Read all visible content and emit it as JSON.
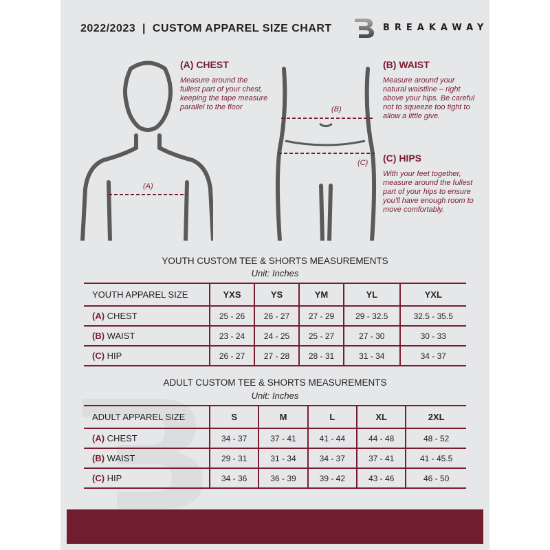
{
  "header": {
    "title": "2022/2023  |  CUSTOM APPAREL SIZE CHART",
    "brand": "BREAKAWAY",
    "logo_letter": "B"
  },
  "chest": {
    "heading": "(A) CHEST",
    "desc": "Measure around the fullest part of your chest, keeping the tape measure parallel to the floor",
    "marker": "(A)"
  },
  "waist": {
    "heading": "(B) WAIST",
    "desc": "Measure around your natural waistline – right above your hips. Be careful not to squeeze too tight to allow a little give.",
    "marker": "(B)"
  },
  "hips": {
    "heading": "(C) HIPS",
    "desc": "With your feet together, measure around the fullest part of your hips to ensure you'll have enough room to move comfortably.",
    "marker": "(C)"
  },
  "colors": {
    "accent": "#7a1c30",
    "background": "#e6e7e8"
  },
  "youth": {
    "title": "YOUTH CUSTOM TEE & SHORTS MEASUREMENTS",
    "unit": "Unit: Inches",
    "size_label": "YOUTH APPAREL SIZE",
    "sizes": [
      "YXS",
      "YS",
      "YM",
      "YL",
      "YXL"
    ],
    "rows": [
      {
        "letter": "(A)",
        "name": "CHEST",
        "values": [
          "25 - 26",
          "26 - 27",
          "27 - 29",
          "29 - 32.5",
          "32.5 - 35.5"
        ]
      },
      {
        "letter": "(B)",
        "name": "WAIST",
        "values": [
          "23 - 24",
          "24 - 25",
          "25 - 27",
          "27 - 30",
          "30 - 33"
        ]
      },
      {
        "letter": "(C)",
        "name": "HIP",
        "values": [
          "26 - 27",
          "27 - 28",
          "28 - 31",
          "31 - 34",
          "34 - 37"
        ]
      }
    ]
  },
  "adult": {
    "title": "ADULT CUSTOM TEE & SHORTS MEASUREMENTS",
    "unit": "Unit: Inches",
    "size_label": "ADULT APPAREL SIZE",
    "sizes": [
      "S",
      "M",
      "L",
      "XL",
      "2XL"
    ],
    "rows": [
      {
        "letter": "(A)",
        "name": "CHEST",
        "values": [
          "34 - 37",
          "37 - 41",
          "41 - 44",
          "44 - 48",
          "48 - 52"
        ]
      },
      {
        "letter": "(B)",
        "name": "WAIST",
        "values": [
          "29 - 31",
          "31 - 34",
          "34 - 37",
          "37 - 41",
          "41 - 45.5"
        ]
      },
      {
        "letter": "(C)",
        "name": "HIP",
        "values": [
          "34 - 36",
          "36 - 39",
          "39 - 42",
          "43 - 46",
          "46 - 50"
        ]
      }
    ]
  }
}
